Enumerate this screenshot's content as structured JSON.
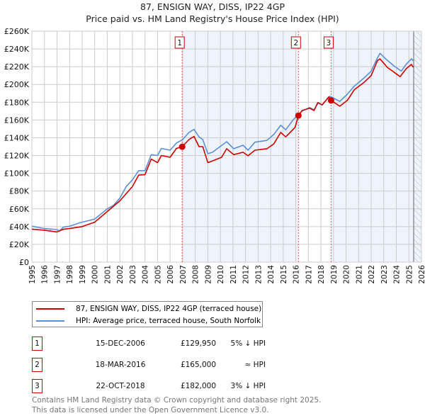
{
  "chart_data": {
    "type": "line",
    "title": "87, ENSIGN WAY, DISS, IP22 4GP",
    "subtitle": "Price paid vs. HM Land Registry's House Price Index (HPI)",
    "xlim": [
      1995,
      2026
    ],
    "ylim": [
      0,
      260000
    ],
    "x_ticks": [
      "1995",
      "1996",
      "1997",
      "1998",
      "1999",
      "2000",
      "2001",
      "2002",
      "2003",
      "2004",
      "2005",
      "2006",
      "2007",
      "2008",
      "2009",
      "2010",
      "2011",
      "2012",
      "2013",
      "2014",
      "2015",
      "2016",
      "2017",
      "2018",
      "2019",
      "2020",
      "2021",
      "2022",
      "2023",
      "2024",
      "2025",
      "2026"
    ],
    "y_ticks": [
      {
        "v": 0,
        "label": "£0"
      },
      {
        "v": 20000,
        "label": "£20K"
      },
      {
        "v": 40000,
        "label": "£40K"
      },
      {
        "v": 60000,
        "label": "£60K"
      },
      {
        "v": 80000,
        "label": "£80K"
      },
      {
        "v": 100000,
        "label": "£100K"
      },
      {
        "v": 120000,
        "label": "£120K"
      },
      {
        "v": 140000,
        "label": "£140K"
      },
      {
        "v": 160000,
        "label": "£160K"
      },
      {
        "v": 180000,
        "label": "£180K"
      },
      {
        "v": 200000,
        "label": "£200K"
      },
      {
        "v": 220000,
        "label": "£220K"
      },
      {
        "v": 240000,
        "label": "£240K"
      },
      {
        "v": 260000,
        "label": "£260K"
      }
    ],
    "grid": true,
    "colors": {
      "property": "#cc0000",
      "hpi": "#5b8fd4",
      "shade": "#eef3fc"
    },
    "forecast_start": 2025.38,
    "series": [
      {
        "name": "87, ENSIGN WAY, DISS, IP22 4GP (terraced house)",
        "key": "property",
        "x": [
          1995,
          1996,
          1997,
          1997.5,
          1998,
          1999,
          2000,
          2001,
          2002,
          2003,
          2003.5,
          2004,
          2004.5,
          2005,
          2005.3,
          2006,
          2006.5,
          2006.96,
          2007.5,
          2007.9,
          2008.3,
          2008.6,
          2009,
          2009.37,
          2010.1,
          2010.5,
          2011.06,
          2011.8,
          2012.2,
          2012.75,
          2013.7,
          2014.25,
          2014.8,
          2015.2,
          2015.76,
          2015.95,
          2016.21,
          2016.5,
          2017.1,
          2017.45,
          2017.75,
          2018.1,
          2018.62,
          2018.81,
          2019.5,
          2020.1,
          2020.65,
          2021.4,
          2022,
          2022.5,
          2022.7,
          2023.3,
          2023.8,
          2024.3,
          2024.8,
          2025.2,
          2025.35
        ],
        "y": [
          37200,
          36000,
          34000,
          37000,
          37800,
          40000,
          45000,
          57000,
          69000,
          85000,
          98000,
          98400,
          116000,
          112000,
          120000,
          118000,
          128000,
          129950,
          138000,
          141500,
          130000,
          130000,
          112000,
          114000,
          118000,
          127700,
          121000,
          123700,
          119700,
          126000,
          127700,
          133000,
          146000,
          141000,
          149000,
          152000,
          165000,
          170700,
          173400,
          170700,
          179500,
          177000,
          186000,
          182000,
          175500,
          182000,
          194000,
          202000,
          210000,
          227000,
          228700,
          219000,
          214000,
          208800,
          218000,
          222600,
          219400
        ]
      },
      {
        "name": "HPI: Average price, terraced house, South Norfolk",
        "key": "hpi",
        "x": [
          1995,
          1996,
          1997,
          1997.2,
          1997.5,
          1998,
          1998.9,
          2000,
          2001,
          2001.5,
          2002,
          2002.5,
          2003,
          2003.5,
          2004,
          2004.5,
          2005,
          2005.3,
          2006,
          2006.5,
          2007,
          2007.5,
          2007.9,
          2008.3,
          2008.6,
          2009,
          2009.37,
          2010.5,
          2011.06,
          2011.8,
          2012.2,
          2012.75,
          2013.7,
          2014.25,
          2014.8,
          2015.2,
          2015.76,
          2016.1,
          2016.5,
          2017.1,
          2017.45,
          2017.8,
          2018.1,
          2018.7,
          2018.95,
          2019.5,
          2020.1,
          2020.65,
          2021.4,
          2022,
          2022.5,
          2022.7,
          2023.3,
          2023.8,
          2024.4,
          2024.8,
          2025.2,
          2025.35
        ],
        "y": [
          40400,
          37800,
          36700,
          35000,
          39400,
          40400,
          44700,
          48400,
          60000,
          64000,
          72000,
          85000,
          92600,
          103000,
          103000,
          121000,
          120000,
          128000,
          126000,
          134000,
          138000,
          146000,
          149500,
          141000,
          138000,
          122000,
          123700,
          135600,
          127700,
          131600,
          126000,
          135000,
          137000,
          143600,
          154000,
          149000,
          159600,
          165000,
          170000,
          174000,
          171500,
          179500,
          177000,
          186700,
          185000,
          181000,
          189000,
          198000,
          207000,
          215000,
          230000,
          235000,
          227000,
          221000,
          215000,
          223000,
          229000,
          226600
        ]
      }
    ],
    "sales": [
      {
        "id": "1",
        "x": 2006.96,
        "price": 129950
      },
      {
        "id": "2",
        "x": 2016.21,
        "price": 165000
      },
      {
        "id": "3",
        "x": 2018.81,
        "price": 182000
      }
    ]
  },
  "legend": {
    "property": "87, ENSIGN WAY, DISS, IP22 4GP (terraced house)",
    "hpi": "HPI: Average price, terraced house, South Norfolk"
  },
  "transactions": [
    {
      "id": "1",
      "date": "15-DEC-2006",
      "price": "£129,950",
      "hpi": "5% ↓ HPI"
    },
    {
      "id": "2",
      "date": "18-MAR-2016",
      "price": "£165,000",
      "hpi": "≈ HPI"
    },
    {
      "id": "3",
      "date": "22-OCT-2018",
      "price": "£182,000",
      "hpi": "3% ↓ HPI"
    }
  ],
  "footer": {
    "line1": "Contains HM Land Registry data © Crown copyright and database right 2025.",
    "line2": "This data is licensed under the Open Government Licence v3.0."
  }
}
